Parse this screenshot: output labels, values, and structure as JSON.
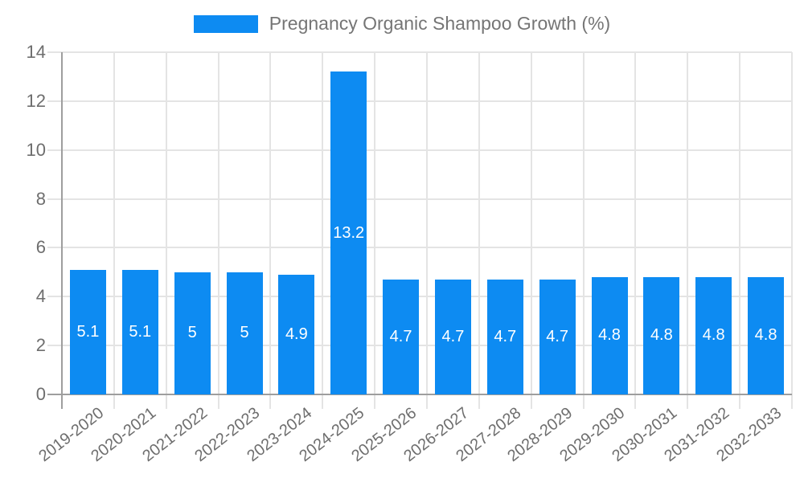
{
  "legend": {
    "label": "Pregnancy Organic Shampoo Growth (%)"
  },
  "chart_data": {
    "type": "bar",
    "title": "Pregnancy Organic Shampoo Growth (%)",
    "categories": [
      "2019-2020",
      "2020-2021",
      "2021-2022",
      "2022-2023",
      "2023-2024",
      "2024-2025",
      "2025-2026",
      "2026-2027",
      "2027-2028",
      "2028-2029",
      "2029-2030",
      "2030-2031",
      "2031-2032",
      "2032-2033"
    ],
    "values": [
      5.1,
      5.1,
      5,
      5,
      4.9,
      13.2,
      4.7,
      4.7,
      4.7,
      4.7,
      4.8,
      4.8,
      4.8,
      4.8
    ],
    "data_labels": [
      "5.1",
      "5.1",
      "5",
      "5",
      "4.9",
      "13.2",
      "4.7",
      "4.7",
      "4.7",
      "4.7",
      "4.8",
      "4.8",
      "4.8",
      "4.8"
    ],
    "xlabel": "",
    "ylabel": "",
    "ylim": [
      0,
      14
    ],
    "yticks": [
      0,
      2,
      4,
      6,
      8,
      10,
      12,
      14
    ],
    "grid": "on",
    "legend_position": "top-center"
  },
  "colors": {
    "bar": "#0d8bf2",
    "bar_label": "#ffffff",
    "grid": "#e4e4e4",
    "axis": "#9e9e9e",
    "tick_label": "#6e6e6e",
    "legend_text": "#757575",
    "background": "#ffffff"
  }
}
